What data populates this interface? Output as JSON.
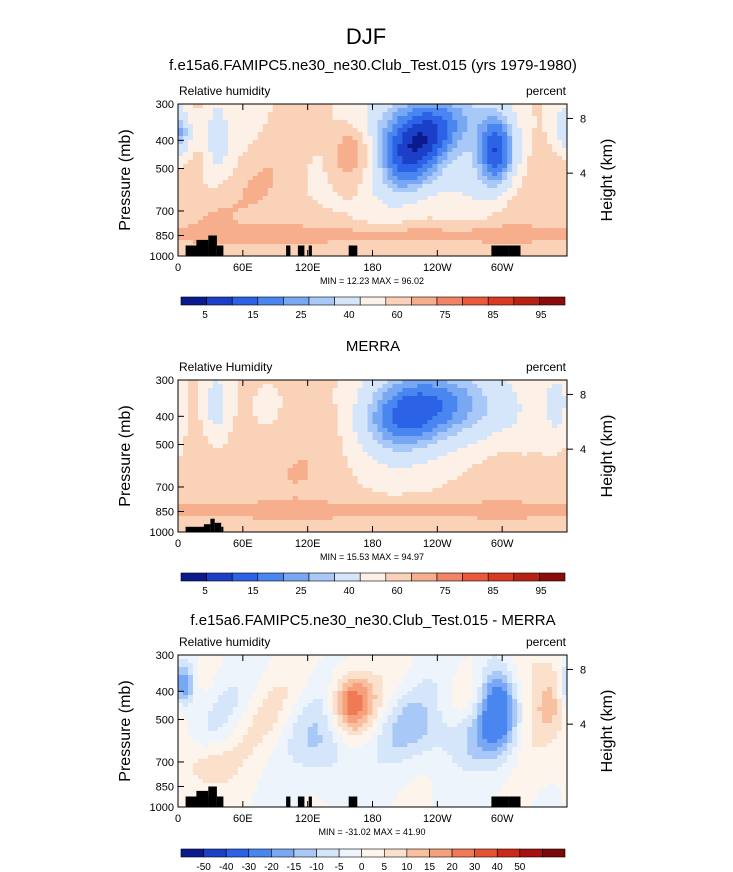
{
  "figure": {
    "season": "DJF"
  },
  "colors": {
    "rh_levels": [
      "#0b1a8c",
      "#1c3fc8",
      "#2c62e6",
      "#4a86f0",
      "#78a8f4",
      "#a8c8f8",
      "#d6e6fa",
      "#fdf0e6",
      "#f9d2b8",
      "#f6ae8c",
      "#f28466",
      "#ea5a3a",
      "#d83a22",
      "#b82214",
      "#8c0c0c"
    ],
    "diff_levels": [
      "#0b1a8c",
      "#1c3fc8",
      "#2c62e6",
      "#4a86f0",
      "#78a8f4",
      "#a8c8f8",
      "#d6e6fa",
      "#eef4fc",
      "#fdf4ec",
      "#fbe0cc",
      "#f9c0a0",
      "#f6a07c",
      "#f07a54",
      "#e65234",
      "#cc2a18",
      "#a61210",
      "#7c0808"
    ],
    "terrain": "#000000"
  },
  "chart_data": [
    {
      "type": "heatmap",
      "title": "f.e15a6.FAMIPC5.ne30_ne30.Club_Test.015 (yrs 1979-1980)",
      "left_label": "Relative humidity",
      "right_label": "percent",
      "ylabel": "Pressure (mb)",
      "ylabel_right": "Height (km)",
      "x_ticks": [
        "0",
        "60E",
        "120E",
        "180",
        "120W",
        "60W"
      ],
      "y_ticks": [
        "300",
        "400",
        "500",
        "700",
        "850",
        "1000"
      ],
      "y_right_ticks": [
        "8",
        "4"
      ],
      "xlim": [
        0,
        360
      ],
      "ylim": [
        1000,
        300
      ],
      "stats": "MIN =  12.23  MAX =  96.02",
      "colorbar_labels": [
        "5",
        "15",
        "25",
        "40",
        "60",
        "75",
        "85",
        "95"
      ],
      "field": "model"
    },
    {
      "type": "heatmap",
      "title": "MERRA",
      "left_label": "Relative Humidity",
      "right_label": "percent",
      "ylabel": "Pressure (mb)",
      "ylabel_right": "Height (km)",
      "x_ticks": [
        "0",
        "60E",
        "120E",
        "180",
        "120W",
        "60W"
      ],
      "y_ticks": [
        "300",
        "400",
        "500",
        "700",
        "850",
        "1000"
      ],
      "y_right_ticks": [
        "8",
        "4"
      ],
      "xlim": [
        0,
        360
      ],
      "ylim": [
        1000,
        300
      ],
      "stats": "MIN =  15.53  MAX =  94.97",
      "colorbar_labels": [
        "5",
        "15",
        "25",
        "40",
        "60",
        "75",
        "85",
        "95"
      ],
      "field": "obs"
    },
    {
      "type": "heatmap",
      "title": "f.e15a6.FAMIPC5.ne30_ne30.Club_Test.015 - MERRA",
      "left_label": "Relative humidity",
      "right_label": "percent",
      "ylabel": "Pressure (mb)",
      "ylabel_right": "Height (km)",
      "x_ticks": [
        "0",
        "60E",
        "120E",
        "180",
        "120W",
        "60W"
      ],
      "y_ticks": [
        "300",
        "400",
        "500",
        "700",
        "850",
        "1000"
      ],
      "y_right_ticks": [
        "8",
        "4"
      ],
      "xlim": [
        0,
        360
      ],
      "ylim": [
        1000,
        300
      ],
      "stats": "MIN = -31.02  MAX =  41.90",
      "colorbar_labels": [
        "-50",
        "-40",
        "-30",
        "-20",
        "-15",
        "-10",
        "-5",
        "0",
        "5",
        "10",
        "15",
        "20",
        "30",
        "40",
        "50"
      ],
      "field": "diff"
    }
  ]
}
